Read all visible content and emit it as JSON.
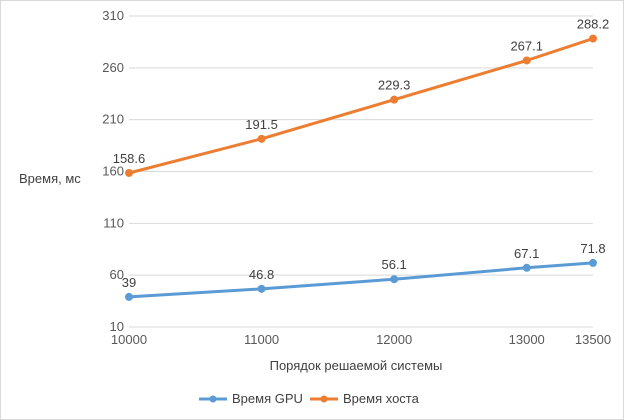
{
  "chart_data": {
    "type": "line",
    "x": [
      10000,
      11000,
      12000,
      13000,
      13500
    ],
    "categories": [
      "10000",
      "11000",
      "12000",
      "13000",
      "13500"
    ],
    "series": [
      {
        "name": "Время GPU",
        "values": [
          39,
          46.8,
          56.1,
          67.1,
          71.8
        ],
        "labels": [
          "39",
          "46.8",
          "56.1",
          "67.1",
          "71.8"
        ],
        "color": "#5b9bd5"
      },
      {
        "name": "Время хоста",
        "values": [
          158.6,
          191.5,
          229.3,
          267.1,
          288.2
        ],
        "labels": [
          "158.6",
          "191.5",
          "229.3",
          "267.1",
          "288.2"
        ],
        "color": "#ed7d31"
      }
    ],
    "title": "",
    "xlabel": "Порядок решаемой системы",
    "ylabel": "Время, мс",
    "ylim": [
      10,
      310
    ],
    "yticks": [
      10,
      60,
      110,
      160,
      210,
      260,
      310
    ],
    "ytick_labels": [
      "10",
      "60",
      "110",
      "160",
      "210",
      "260",
      "310"
    ],
    "grid": "horizontal",
    "legend_position": "bottom"
  }
}
